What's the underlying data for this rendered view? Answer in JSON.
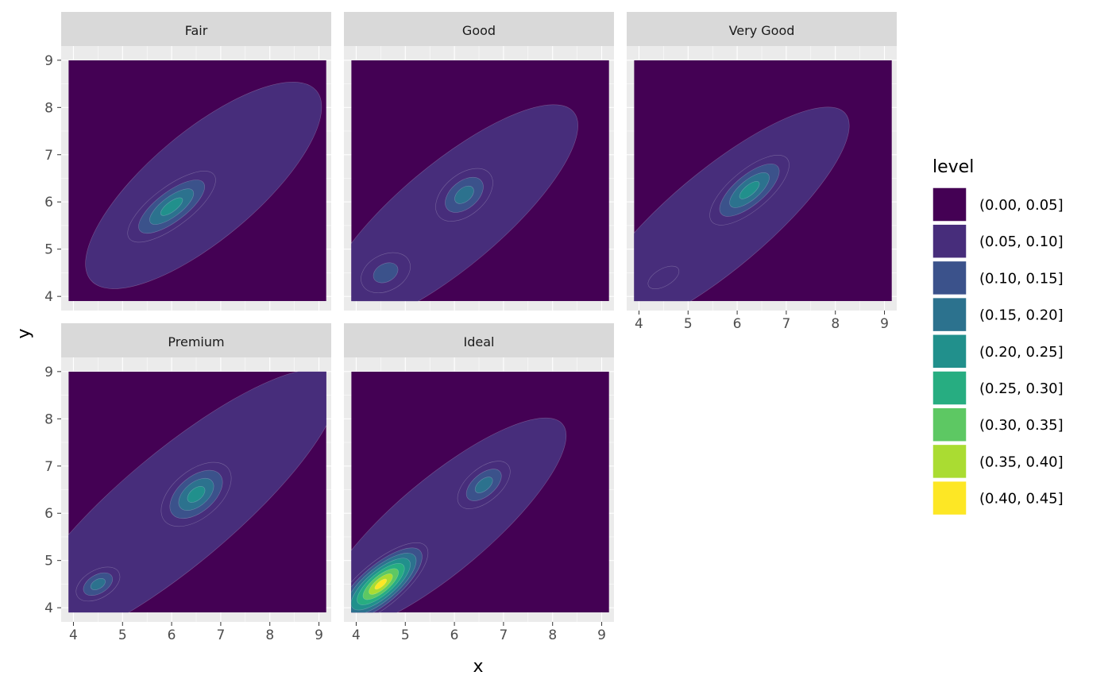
{
  "chart_data": {
    "type": "contour",
    "xlabel": "x",
    "ylabel": "y",
    "xlim": [
      3.75,
      9.25
    ],
    "ylim": [
      3.7,
      9.3
    ],
    "x_ticks": [
      4,
      5,
      6,
      7,
      8,
      9
    ],
    "y_ticks": [
      4,
      5,
      6,
      7,
      8,
      9
    ],
    "fill_range": {
      "x": [
        3.9,
        9.15
      ],
      "y": [
        3.9,
        9.0
      ]
    },
    "grid": true,
    "legend": {
      "title": "level",
      "position": "right",
      "entries": [
        {
          "label": "(0.00, 0.05]",
          "color": "#440154"
        },
        {
          "label": "(0.05, 0.10]",
          "color": "#472D7B"
        },
        {
          "label": "(0.10, 0.15]",
          "color": "#3B528B"
        },
        {
          "label": "(0.15, 0.20]",
          "color": "#2C728E"
        },
        {
          "label": "(0.20, 0.25]",
          "color": "#21908C"
        },
        {
          "label": "(0.25, 0.30]",
          "color": "#27AD81"
        },
        {
          "label": "(0.30, 0.35]",
          "color": "#5DC863"
        },
        {
          "label": "(0.35, 0.40]",
          "color": "#AADC32"
        },
        {
          "label": "(0.40, 0.45]",
          "color": "#FDE725"
        }
      ]
    },
    "facets": [
      {
        "name": "Fair",
        "modes": [
          {
            "x": 6.0,
            "y": 5.9,
            "level": 5,
            "sx": 1.35,
            "sy": 0.5,
            "angle": 37
          },
          {
            "x": 7.7,
            "y": 7.55,
            "level": 1,
            "sx": 0.75,
            "sy": 0.35,
            "angle": 40
          }
        ],
        "base": {
          "x": 6.65,
          "y": 6.35,
          "sx": 3.0,
          "sy": 1.1,
          "angle": 40
        }
      },
      {
        "name": "Good",
        "modes": [
          {
            "x": 4.6,
            "y": 4.5,
            "level": 3,
            "sx": 0.8,
            "sy": 0.55,
            "angle": 28
          },
          {
            "x": 6.2,
            "y": 6.15,
            "level": 4,
            "sx": 0.9,
            "sy": 0.55,
            "angle": 40
          }
        ],
        "base": {
          "x": 5.9,
          "y": 5.7,
          "sx": 3.3,
          "sy": 1.05,
          "angle": 40
        }
      },
      {
        "name": "Very Good",
        "modes": [
          {
            "x": 6.25,
            "y": 6.25,
            "level": 5,
            "sx": 1.25,
            "sy": 0.5,
            "angle": 40
          },
          {
            "x": 4.5,
            "y": 4.4,
            "level": 2,
            "sx": 0.7,
            "sy": 0.35,
            "angle": 30
          }
        ],
        "base": {
          "x": 5.6,
          "y": 5.6,
          "sx": 3.4,
          "sy": 1.0,
          "angle": 40
        }
      },
      {
        "name": "Premium",
        "modes": [
          {
            "x": 6.5,
            "y": 6.4,
            "level": 5,
            "sx": 1.05,
            "sy": 0.6,
            "angle": 40
          },
          {
            "x": 4.5,
            "y": 4.5,
            "level": 4,
            "sx": 0.65,
            "sy": 0.38,
            "angle": 30
          }
        ],
        "base": {
          "x": 6.1,
          "y": 6.1,
          "sx": 4.2,
          "sy": 1.15,
          "angle": 40
        }
      },
      {
        "name": "Ideal",
        "modes": [
          {
            "x": 4.5,
            "y": 4.5,
            "level": 9,
            "sx": 1.35,
            "sy": 0.5,
            "angle": 40
          },
          {
            "x": 6.6,
            "y": 6.6,
            "level": 4,
            "sx": 0.85,
            "sy": 0.45,
            "angle": 40
          }
        ],
        "base": {
          "x": 5.75,
          "y": 5.75,
          "sx": 3.2,
          "sy": 0.95,
          "angle": 40
        }
      }
    ]
  }
}
